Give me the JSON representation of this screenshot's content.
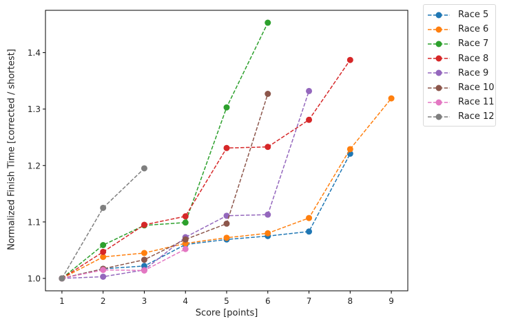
{
  "chart_data": {
    "type": "line",
    "title": "",
    "xlabel": "Score [points]",
    "ylabel": "Normalized Finish Time [corrected / shortest]",
    "xlim": [
      0.6,
      9.4
    ],
    "ylim": [
      0.978,
      1.475
    ],
    "xticks": [
      1,
      2,
      3,
      4,
      5,
      6,
      7,
      8,
      9
    ],
    "yticks": [
      1.0,
      1.1,
      1.2,
      1.3,
      1.4
    ],
    "ytick_labels": [
      "1.0",
      "1.1",
      "1.2",
      "1.3",
      "1.4"
    ],
    "grid": false,
    "legend_position": "outside upper right",
    "line_style": "dashed",
    "marker": "circle",
    "series": [
      {
        "name": "Race 5",
        "color": "#1f77b4",
        "x": [
          1,
          2,
          3,
          4,
          5,
          6,
          7,
          8
        ],
        "y": [
          1.0,
          1.017,
          1.022,
          1.06,
          1.069,
          1.075,
          1.083,
          1.221
        ]
      },
      {
        "name": "Race 6",
        "color": "#ff7f0e",
        "x": [
          1,
          2,
          3,
          4,
          5,
          6,
          7,
          8,
          9
        ],
        "y": [
          1.0,
          1.038,
          1.045,
          1.062,
          1.072,
          1.08,
          1.107,
          1.229,
          1.319
        ]
      },
      {
        "name": "Race 7",
        "color": "#2ca02c",
        "x": [
          1,
          2,
          3,
          4,
          5,
          6
        ],
        "y": [
          1.0,
          1.059,
          1.094,
          1.099,
          1.303,
          1.453
        ]
      },
      {
        "name": "Race 8",
        "color": "#d62728",
        "x": [
          1,
          2,
          3,
          4,
          5,
          6,
          7,
          8
        ],
        "y": [
          1.0,
          1.047,
          1.095,
          1.11,
          1.231,
          1.233,
          1.281,
          1.387
        ]
      },
      {
        "name": "Race 9",
        "color": "#9467bd",
        "x": [
          1,
          2,
          3,
          4,
          5,
          6,
          7
        ],
        "y": [
          1.0,
          1.003,
          1.015,
          1.073,
          1.111,
          1.113,
          1.332
        ]
      },
      {
        "name": "Race 10",
        "color": "#8c564b",
        "x": [
          1,
          2,
          3,
          4,
          5,
          6
        ],
        "y": [
          1.0,
          1.017,
          1.033,
          1.069,
          1.097,
          1.327
        ]
      },
      {
        "name": "Race 11",
        "color": "#e377c2",
        "x": [
          1,
          2,
          3,
          4
        ],
        "y": [
          1.0,
          1.015,
          1.014,
          1.052
        ]
      },
      {
        "name": "Race 12",
        "color": "#7f7f7f",
        "x": [
          1,
          2,
          3
        ],
        "y": [
          1.0,
          1.125,
          1.195
        ]
      }
    ]
  },
  "legend": {
    "items": [
      "Race 5",
      "Race 6",
      "Race 7",
      "Race 8",
      "Race 9",
      "Race 10",
      "Race 11",
      "Race 12"
    ]
  }
}
